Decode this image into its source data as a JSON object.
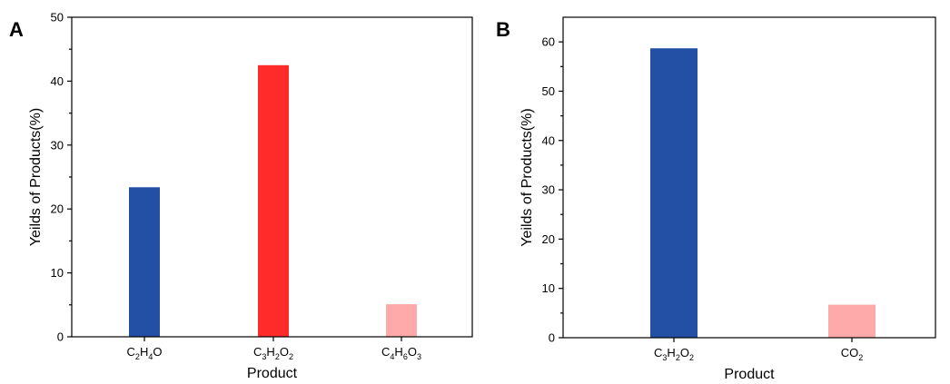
{
  "chart_data": [
    {
      "panel": "A",
      "type": "bar",
      "xlabel": "Product",
      "ylabel": "Yeilds of Products(%)",
      "ylim": [
        0,
        50
      ],
      "yticks": [
        0,
        10,
        20,
        30,
        40,
        50
      ],
      "minor_yticks": true,
      "grid": false,
      "categories": [
        {
          "parts": [
            {
              "t": "C"
            },
            {
              "t": "2",
              "sub": true
            },
            {
              "t": "H"
            },
            {
              "t": "4",
              "sub": true
            },
            {
              "t": "O"
            }
          ]
        },
        {
          "parts": [
            {
              "t": "C"
            },
            {
              "t": "3",
              "sub": true
            },
            {
              "t": "H"
            },
            {
              "t": "2",
              "sub": true
            },
            {
              "t": "O"
            },
            {
              "t": "2",
              "sub": true
            }
          ]
        },
        {
          "parts": [
            {
              "t": "C"
            },
            {
              "t": "4",
              "sub": true
            },
            {
              "t": "H"
            },
            {
              "t": "6",
              "sub": true
            },
            {
              "t": "O"
            },
            {
              "t": "3",
              "sub": true
            }
          ]
        }
      ],
      "values": [
        23.4,
        42.5,
        5.1
      ],
      "colors": [
        "#2350A5",
        "#FF2A2A",
        "#FFAAAA"
      ]
    },
    {
      "panel": "B",
      "type": "bar",
      "xlabel": "Product",
      "ylabel": "Yeilds of Products(%)",
      "ylim": [
        0,
        65
      ],
      "yticks": [
        0,
        10,
        20,
        30,
        40,
        50,
        60
      ],
      "minor_yticks": true,
      "grid": false,
      "categories": [
        {
          "parts": [
            {
              "t": "C"
            },
            {
              "t": "3",
              "sub": true
            },
            {
              "t": "H"
            },
            {
              "t": "2",
              "sub": true
            },
            {
              "t": "O"
            },
            {
              "t": "2",
              "sub": true
            }
          ]
        },
        {
          "parts": [
            {
              "t": "CO"
            },
            {
              "t": "2",
              "sub": true
            }
          ]
        }
      ],
      "values": [
        58.7,
        6.7
      ],
      "colors": [
        "#2350A5",
        "#FFAAAA"
      ]
    }
  ]
}
